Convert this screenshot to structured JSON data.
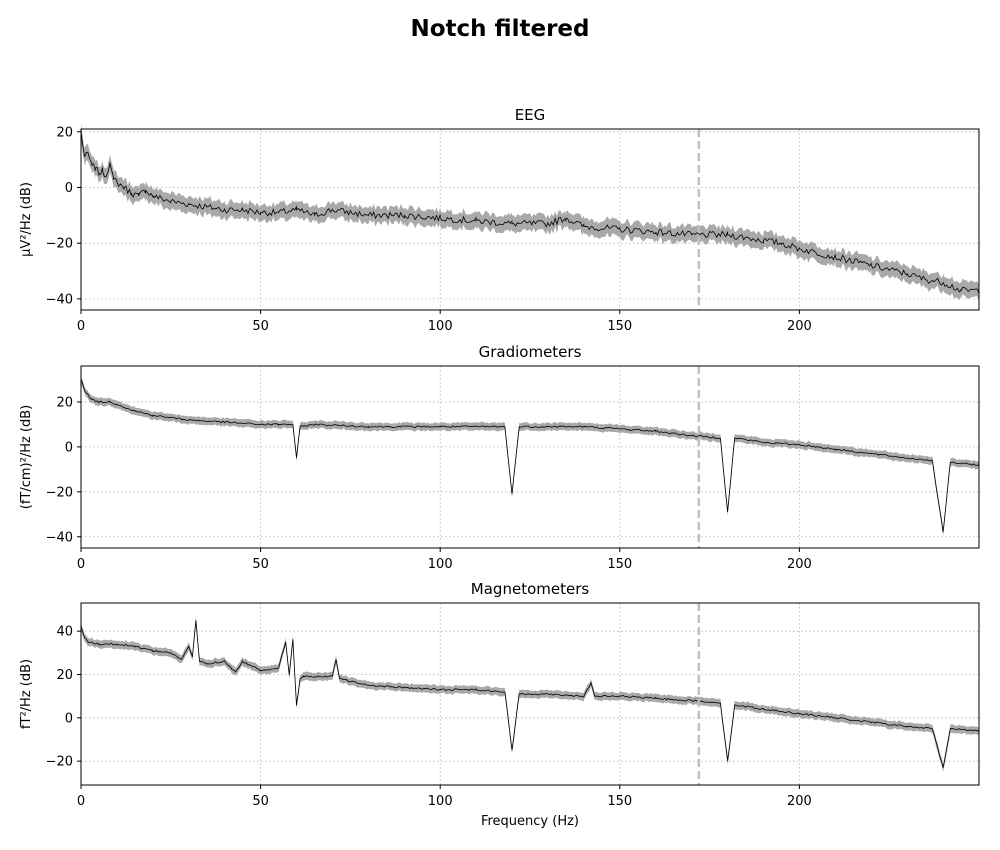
{
  "figure": {
    "title": "Notch filtered"
  },
  "colors": {
    "mean_line": "#000000",
    "std_band": "#a9a9a9",
    "grid": "#b0b0b0",
    "marker_line": "#c0c0c0"
  },
  "chart_data": [
    {
      "type": "line",
      "title": "EEG",
      "xlabel": "",
      "ylabel": "µV²/Hz (dB)",
      "xlim": [
        0,
        250
      ],
      "ylim": [
        -44,
        21
      ],
      "xticks": [
        0,
        50,
        100,
        150,
        200
      ],
      "yticks": [
        -40,
        -20,
        0,
        20
      ],
      "grid": true,
      "vertical_marker_x": 172,
      "band_halfwidth": 2.5,
      "series": [
        {
          "x": [
            0,
            1,
            2,
            3,
            4,
            5,
            6,
            7,
            8,
            9,
            10,
            12,
            14,
            16,
            18,
            20,
            25,
            30,
            35,
            40,
            45,
            50,
            55,
            60,
            65,
            70,
            80,
            90,
            100,
            110,
            120,
            130,
            135,
            140,
            150,
            160,
            170,
            180,
            190,
            195,
            200,
            210,
            220,
            230,
            235,
            240,
            245,
            250
          ],
          "y": [
            20,
            11,
            12,
            8,
            7,
            5,
            6,
            4,
            9,
            3,
            2,
            0,
            -2,
            -3,
            -1,
            -3,
            -5,
            -6,
            -7,
            -8,
            -8,
            -9,
            -9,
            -8,
            -10,
            -8,
            -10,
            -10,
            -11,
            -12,
            -13,
            -13,
            -11,
            -14,
            -15,
            -16,
            -17,
            -17,
            -19,
            -20,
            -22,
            -25,
            -28,
            -31,
            -33,
            -34,
            -37,
            -37
          ]
        }
      ]
    },
    {
      "type": "line",
      "title": "Gradiometers",
      "xlabel": "",
      "ylabel": "(fT/cm)²/Hz (dB)",
      "xlim": [
        0,
        250
      ],
      "ylim": [
        -45,
        36
      ],
      "xticks": [
        0,
        50,
        100,
        150,
        200
      ],
      "yticks": [
        -40,
        -20,
        0,
        20
      ],
      "grid": true,
      "vertical_marker_x": 172,
      "band_halfwidth": 1.5,
      "series": [
        {
          "x": [
            0,
            1,
            2,
            3,
            5,
            8,
            10,
            15,
            20,
            25,
            30,
            40,
            50,
            55,
            59,
            60,
            61,
            65,
            80,
            100,
            118,
            120,
            122,
            140,
            150,
            160,
            170,
            178,
            180,
            182,
            190,
            200,
            210,
            220,
            230,
            237,
            240,
            242,
            250
          ],
          "y": [
            30,
            25,
            23,
            21,
            20,
            20,
            19,
            16,
            14,
            13,
            12,
            11,
            10,
            10,
            10,
            -5,
            9,
            10,
            9,
            9,
            9,
            -21,
            9,
            9,
            8,
            7,
            5,
            4,
            -29,
            4,
            2,
            1,
            -1,
            -3,
            -5,
            -6,
            -38,
            -7,
            -8
          ]
        }
      ]
    },
    {
      "type": "line",
      "title": "Magnetometers",
      "xlabel": "Frequency (Hz)",
      "ylabel": "fT²/Hz (dB)",
      "xlim": [
        0,
        250
      ],
      "ylim": [
        -31,
        53
      ],
      "xticks": [
        0,
        50,
        100,
        150,
        200
      ],
      "yticks": [
        -20,
        0,
        20,
        40
      ],
      "grid": true,
      "vertical_marker_x": 172,
      "band_halfwidth": 1.6,
      "series": [
        {
          "x": [
            0,
            1,
            2,
            5,
            10,
            15,
            20,
            25,
            28,
            30,
            31,
            32,
            33,
            35,
            40,
            43,
            45,
            50,
            55,
            57,
            58,
            59,
            60,
            61,
            62,
            65,
            70,
            71,
            72,
            80,
            90,
            100,
            110,
            118,
            120,
            122,
            130,
            140,
            142,
            143,
            150,
            160,
            170,
            178,
            180,
            182,
            190,
            200,
            210,
            220,
            230,
            237,
            240,
            242,
            250
          ],
          "y": [
            42,
            37,
            35,
            34,
            34,
            33,
            31,
            30,
            27,
            33,
            28,
            45,
            26,
            25,
            26,
            21,
            26,
            22,
            23,
            35,
            20,
            36,
            6,
            18,
            19,
            19,
            19,
            27,
            18,
            15,
            14,
            13,
            13,
            12,
            -15,
            11,
            11,
            10,
            16,
            10,
            10,
            9,
            8,
            7,
            -20,
            6,
            4,
            2,
            0,
            -2,
            -4,
            -5,
            -23,
            -5,
            -6
          ]
        }
      ]
    }
  ]
}
